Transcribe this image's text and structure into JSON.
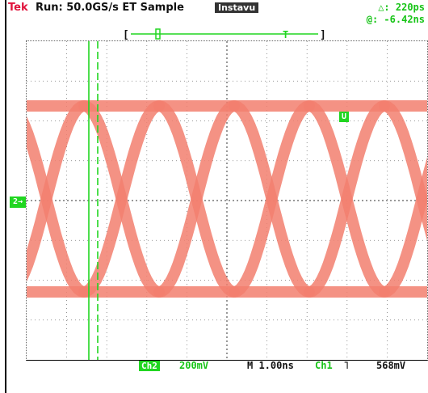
{
  "header": {
    "brand": "Tek",
    "run_status": "Run: 50.0GS/s ET Sample",
    "acq_mode": "Instavu",
    "measurement_delta": "△: 220ps",
    "measurement_at": "@: -6.42ns"
  },
  "display": {
    "channel_marker": "2→",
    "trigger_marker": "U",
    "timebase_bar_left": "[",
    "timebase_bar_right": "]",
    "trigger_position_marker": "T"
  },
  "footer": {
    "channel_label": "Ch2",
    "vertical_scale": "200mV",
    "time_base": "M 1.00ns",
    "trigger_source": "Ch1",
    "trigger_slope": "˥",
    "trigger_level": "568mV"
  },
  "colors": {
    "trace": "#f27f6f",
    "cursor": "#21d621",
    "brand": "#e0143c",
    "readout": "#17c417"
  }
}
